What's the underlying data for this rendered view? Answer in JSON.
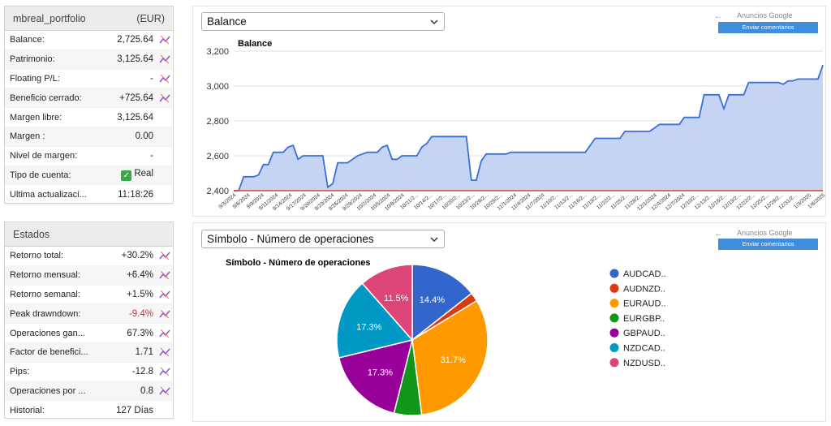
{
  "portfolio": {
    "name": "mbreal_portfolio",
    "currency": "(EUR)",
    "rows": [
      {
        "label": "Balance:",
        "value": "2,725.64",
        "chart": true
      },
      {
        "label": "Patrimonio:",
        "value": "3,125.64",
        "chart": true
      },
      {
        "label": "Floating P/L:",
        "value": "-",
        "chart": true
      },
      {
        "label": "Beneficio cerrado:",
        "value": "+725.64",
        "chart": true
      },
      {
        "label": "Margen libre:",
        "value": "3,125.64",
        "chart": false
      },
      {
        "label": "Margen :",
        "value": "0.00",
        "chart": false
      },
      {
        "label": "Nivel de margen:",
        "value": "-",
        "chart": false
      },
      {
        "label": "Tipo de cuenta:",
        "value": "Real",
        "chart": false
      },
      {
        "label": "Ultima actualizaci...",
        "value": "11:18:26",
        "chart": false
      }
    ]
  },
  "estados": {
    "title": "Estados",
    "rows": [
      {
        "label": "Retorno total:",
        "value": "+30.2%",
        "chart": true
      },
      {
        "label": "Retorno mensual:",
        "value": "+6.4%",
        "chart": true
      },
      {
        "label": "Retorno semanal:",
        "value": "+1.5%",
        "chart": true
      },
      {
        "label": "Peak drawndown:",
        "value": "-9.4%",
        "chart": true,
        "negative": true
      },
      {
        "label": "Operaciones gan...",
        "value": "67.3%",
        "chart": true
      },
      {
        "label": "Factor de benefici...",
        "value": "1.71",
        "chart": true
      },
      {
        "label": "Pips:",
        "value": "-12.8",
        "chart": true
      },
      {
        "label": "Operaciones por ...",
        "value": "0.8",
        "chart": true
      },
      {
        "label": "Historial:",
        "value": "127 Días",
        "chart": false
      }
    ]
  },
  "balance_panel": {
    "select_value": "Balance",
    "ads_label": "Anuncios Google",
    "feedback_label": "Enviar comentarios"
  },
  "symbol_panel": {
    "select_value": "Símbolo - Número de operaciones",
    "ads_label": "Anuncios Google",
    "feedback_label": "Enviar comentarios"
  },
  "colors": {
    "line": "#3b6fd6",
    "area": "#c4d4f2",
    "baseline": "#e0442c",
    "accent_button": "#3f8ddb"
  },
  "chart_data": [
    {
      "type": "area",
      "title": "Balance",
      "ylim": [
        2400,
        3200
      ],
      "yticks": [
        "2,400",
        "2,600",
        "2,800",
        "3,000",
        "3,200"
      ],
      "x_labels": [
        "9/3/2024",
        "9/6/2024",
        "9/9/2024",
        "9/11/2024",
        "9/14/2024",
        "9/17/2024",
        "9/20/2024",
        "9/23/2024",
        "9/26/2024",
        "9/29/2024",
        "10/2/2024",
        "10/5/2024",
        "10/8/2024",
        "10/11/2...",
        "10/14/2...",
        "10/17/2...",
        "10/20/2...",
        "10/23/2...",
        "10/26/2...",
        "10/29/2...",
        "11/1/2024",
        "11/4/2024",
        "11/7/2024",
        "11/10/2...",
        "11/13/2...",
        "11/16/2...",
        "11/19/2...",
        "11/22/2...",
        "11/25/2...",
        "11/28/2...",
        "12/1/2024",
        "12/4/2024",
        "12/7/2024",
        "12/10/2...",
        "12/13/2...",
        "12/16/2...",
        "12/19/2...",
        "12/22/2...",
        "12/25/2...",
        "12/28/2...",
        "12/31/2...",
        "1/3/2025",
        "1/6/2025"
      ],
      "values": [
        2400,
        2400,
        2480,
        2480,
        2480,
        2490,
        2550,
        2550,
        2620,
        2620,
        2620,
        2650,
        2660,
        2580,
        2600,
        2600,
        2600,
        2600,
        2600,
        2420,
        2440,
        2560,
        2560,
        2560,
        2580,
        2600,
        2610,
        2620,
        2620,
        2620,
        2650,
        2660,
        2580,
        2580,
        2600,
        2600,
        2600,
        2600,
        2650,
        2670,
        2710,
        2710,
        2710,
        2710,
        2710,
        2710,
        2710,
        2710,
        2460,
        2460,
        2570,
        2610,
        2610,
        2610,
        2610,
        2610,
        2620,
        2620,
        2620,
        2620,
        2620,
        2620,
        2620,
        2620,
        2620,
        2620,
        2620,
        2620,
        2620,
        2620,
        2620,
        2620,
        2660,
        2700,
        2700,
        2700,
        2700,
        2700,
        2700,
        2740,
        2740,
        2740,
        2740,
        2740,
        2740,
        2760,
        2780,
        2780,
        2780,
        2780,
        2780,
        2820,
        2820,
        2820,
        2820,
        2950,
        2950,
        2950,
        2950,
        2870,
        2950,
        2950,
        2950,
        2950,
        3020,
        3020,
        3020,
        3020,
        3020,
        3020,
        3020,
        3010,
        3030,
        3030,
        3040,
        3040,
        3040,
        3040,
        3040,
        3120
      ],
      "grid": true
    },
    {
      "type": "pie",
      "title": "Símbolo - Número de operaciones",
      "legend_position": "right",
      "slices": [
        {
          "label": "AUDCAD..",
          "value": 14.4,
          "color": "#3366cc",
          "text": "14.4%"
        },
        {
          "label": "AUDNZD..",
          "value": 1.9,
          "color": "#dc3912",
          "text": ""
        },
        {
          "label": "EURAUD..",
          "value": 31.7,
          "color": "#ff9900",
          "text": "31.7%"
        },
        {
          "label": "EURGBP..",
          "value": 5.9,
          "color": "#109618",
          "text": ""
        },
        {
          "label": "GBPAUD..",
          "value": 17.3,
          "color": "#990099",
          "text": "17.3%"
        },
        {
          "label": "NZDCAD..",
          "value": 17.3,
          "color": "#0099c6",
          "text": "17.3%"
        },
        {
          "label": "NZDUSD..",
          "value": 11.5,
          "color": "#dd4477",
          "text": "11.5%"
        }
      ]
    }
  ]
}
